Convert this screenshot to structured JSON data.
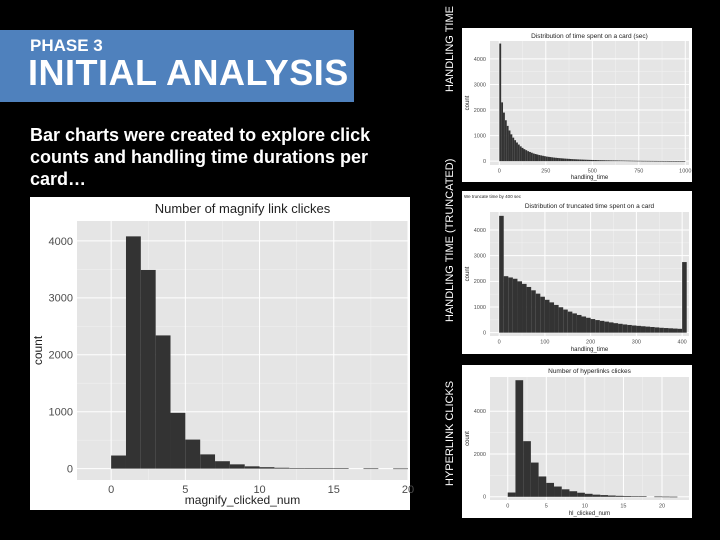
{
  "slide": {
    "phase": "PHASE 3",
    "title": "INITIAL ANALYSIS",
    "description": "Bar charts were created to explore click counts and handling time durations per card…",
    "side_labels": [
      "HANDLING TIME",
      "HANDLING TIME (TRUNCATED)",
      "HYPERLINK CLICKS"
    ]
  },
  "chart_data": [
    {
      "type": "bar",
      "title": "Number of magnify link clickes",
      "xlabel": "magnify_clicked_num",
      "ylabel": "count",
      "xlim": [
        -2.3,
        20
      ],
      "ylim": [
        -200,
        4350
      ],
      "xticks": [
        0,
        5,
        10,
        15,
        20
      ],
      "xtick_labels": [
        "0",
        "5",
        "10",
        "15",
        "20"
      ],
      "yticks": [
        0,
        1000,
        2000,
        3000,
        4000
      ],
      "ytick_labels": [
        "0",
        "1000",
        "2000",
        "3000",
        "4000"
      ],
      "bins": [
        [
          0,
          1
        ],
        [
          1,
          2
        ],
        [
          2,
          3
        ],
        [
          3,
          4
        ],
        [
          4,
          5
        ],
        [
          5,
          6
        ],
        [
          6,
          7
        ],
        [
          7,
          8
        ],
        [
          8,
          9
        ],
        [
          9,
          10
        ],
        [
          10,
          11
        ],
        [
          11,
          12
        ],
        [
          12,
          13
        ],
        [
          13,
          14
        ],
        [
          14,
          15
        ],
        [
          15,
          16
        ],
        [
          17,
          18
        ],
        [
          19,
          20
        ]
      ],
      "values": [
        230,
        4080,
        3490,
        2340,
        980,
        510,
        250,
        130,
        75,
        40,
        25,
        15,
        10,
        8,
        5,
        4,
        3,
        2
      ],
      "grid": true
    },
    {
      "type": "bar",
      "title": "Distribution of time spent on a card (sec)",
      "xlabel": "handling_time",
      "ylabel": "count",
      "xlim": [
        -50,
        1020
      ],
      "ylim": [
        -150,
        4700
      ],
      "xticks": [
        0,
        250,
        500,
        750,
        1000
      ],
      "xtick_labels": [
        "0",
        "250",
        "500",
        "750",
        "1000"
      ],
      "yticks": [
        0,
        1000,
        2000,
        3000,
        4000
      ],
      "ytick_labels": [
        "0",
        "1000",
        "2000",
        "3000",
        "4000"
      ],
      "bin_width": 10,
      "values": [
        4600,
        2300,
        1900,
        1600,
        1380,
        1200,
        1050,
        920,
        820,
        730,
        650,
        580,
        520,
        470,
        430,
        390,
        360,
        330,
        300,
        280,
        260,
        240,
        225,
        210,
        195,
        180,
        170,
        160,
        150,
        140,
        132,
        125,
        118,
        112,
        106,
        100,
        95,
        90,
        85,
        80,
        76,
        72,
        68,
        65,
        62,
        59,
        56,
        53,
        50,
        48,
        46,
        44,
        42,
        40,
        38,
        36,
        35,
        33,
        32,
        30,
        29,
        28,
        27,
        26,
        25,
        24,
        23,
        22,
        21,
        20,
        19,
        18,
        17,
        16,
        15,
        15,
        14,
        13,
        13,
        12,
        12,
        11,
        11,
        10,
        10,
        9,
        9,
        9,
        8,
        8,
        8,
        7,
        7,
        7,
        6,
        6,
        6,
        5,
        5,
        5
      ],
      "grid": true
    },
    {
      "type": "bar",
      "title": "Distribution of truncated time spent on a card",
      "subtitle": "We truncate time by 400 sec",
      "xlabel": "handling_time",
      "ylabel": "count",
      "xlim": [
        -20,
        415
      ],
      "ylim": [
        -130,
        4700
      ],
      "xticks": [
        0,
        100,
        200,
        300,
        400
      ],
      "xtick_labels": [
        "0",
        "100",
        "200",
        "300",
        "400"
      ],
      "yticks": [
        0,
        1000,
        2000,
        3000,
        4000
      ],
      "ytick_labels": [
        "0",
        "1000",
        "2000",
        "3000",
        "4000"
      ],
      "bin_width": 10,
      "values": [
        4550,
        2200,
        2150,
        2100,
        2000,
        1900,
        1780,
        1650,
        1520,
        1400,
        1280,
        1180,
        1080,
        990,
        900,
        820,
        750,
        690,
        630,
        580,
        530,
        490,
        460,
        430,
        400,
        370,
        345,
        320,
        300,
        280,
        265,
        250,
        235,
        220,
        205,
        190,
        180,
        170,
        160,
        150,
        2750
      ],
      "grid": true
    },
    {
      "type": "bar",
      "title": "Number of hyperlinks clickes",
      "xlabel": "hl_clicked_num",
      "ylabel": "count",
      "xlim": [
        -2.3,
        23.5
      ],
      "ylim": [
        -150,
        5600
      ],
      "xticks": [
        0,
        5,
        10,
        15,
        20
      ],
      "xtick_labels": [
        "0",
        "5",
        "10",
        "15",
        "20"
      ],
      "yticks": [
        0,
        2000,
        4000
      ],
      "ytick_labels": [
        "0",
        "2000",
        "4000"
      ],
      "bins": [
        [
          0,
          1
        ],
        [
          1,
          2
        ],
        [
          2,
          3
        ],
        [
          3,
          4
        ],
        [
          4,
          5
        ],
        [
          5,
          6
        ],
        [
          6,
          7
        ],
        [
          7,
          8
        ],
        [
          8,
          9
        ],
        [
          9,
          10
        ],
        [
          10,
          11
        ],
        [
          11,
          12
        ],
        [
          12,
          13
        ],
        [
          13,
          14
        ],
        [
          14,
          15
        ],
        [
          15,
          16
        ],
        [
          16,
          17
        ],
        [
          17,
          18
        ],
        [
          19,
          20
        ],
        [
          20,
          21
        ],
        [
          21,
          22
        ]
      ],
      "values": [
        200,
        5450,
        2600,
        1600,
        950,
        650,
        480,
        350,
        260,
        190,
        140,
        100,
        80,
        60,
        45,
        35,
        25,
        18,
        12,
        8,
        5
      ],
      "grid": true
    }
  ]
}
